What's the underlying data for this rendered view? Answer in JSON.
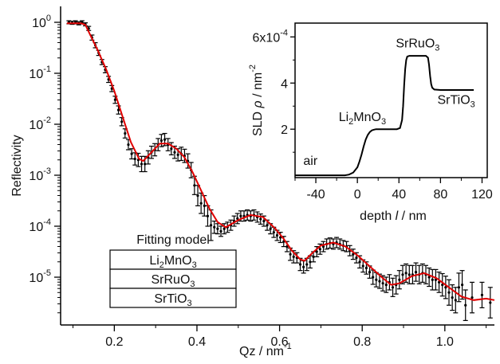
{
  "chart_data": [
    {
      "type": "scatter",
      "title": "",
      "xlabel": "Qz / nm",
      "xlabel_sup": "-1",
      "ylabel": "Reflectivity",
      "xlim": [
        0.07,
        1.12
      ],
      "ylim_exponent": [
        -6,
        0
      ],
      "y_scale": "log",
      "x_ticks": [
        "0.2",
        "0.4",
        "0.6",
        "0.8",
        "1.0"
      ],
      "x_tick_values": [
        0.2,
        0.4,
        0.6,
        0.8,
        1.0
      ],
      "y_ticks": [
        {
          "base": "10",
          "exp": "0",
          "value": 0
        },
        {
          "base": "10",
          "exp": "-1",
          "value": -1
        },
        {
          "base": "10",
          "exp": "-2",
          "value": -2
        },
        {
          "base": "10",
          "exp": "-3",
          "value": -3
        },
        {
          "base": "10",
          "exp": "-4",
          "value": -4
        },
        {
          "base": "10",
          "exp": "-5",
          "value": -5
        }
      ],
      "series": [
        {
          "type": "errorbar",
          "color": "#000000",
          "points": [
            [
              0.09,
              0.0,
              0.03
            ],
            [
              0.098,
              -0.01,
              0.03
            ],
            [
              0.106,
              0.0,
              0.03
            ],
            [
              0.114,
              -0.02,
              0.03
            ],
            [
              0.122,
              0.0,
              0.03
            ],
            [
              0.13,
              -0.04,
              0.03
            ],
            [
              0.138,
              -0.12,
              0.04
            ],
            [
              0.146,
              -0.3,
              0.05
            ],
            [
              0.154,
              -0.45,
              0.05
            ],
            [
              0.162,
              -0.6,
              0.05
            ],
            [
              0.17,
              -0.78,
              0.05
            ],
            [
              0.178,
              -0.93,
              0.06
            ],
            [
              0.186,
              -1.12,
              0.06
            ],
            [
              0.194,
              -1.3,
              0.06
            ],
            [
              0.202,
              -1.52,
              0.07
            ],
            [
              0.21,
              -1.72,
              0.08
            ],
            [
              0.218,
              -1.95,
              0.08
            ],
            [
              0.226,
              -2.18,
              0.09
            ],
            [
              0.234,
              -2.4,
              0.1
            ],
            [
              0.242,
              -2.58,
              0.1
            ],
            [
              0.25,
              -2.68,
              0.12
            ],
            [
              0.258,
              -2.7,
              0.13
            ],
            [
              0.266,
              -2.78,
              0.15
            ],
            [
              0.274,
              -2.78,
              0.15
            ],
            [
              0.282,
              -2.65,
              0.13
            ],
            [
              0.29,
              -2.55,
              0.12
            ],
            [
              0.298,
              -2.5,
              0.12
            ],
            [
              0.306,
              -2.4,
              0.12
            ],
            [
              0.314,
              -2.32,
              0.12
            ],
            [
              0.322,
              -2.3,
              0.12
            ],
            [
              0.33,
              -2.4,
              0.12
            ],
            [
              0.338,
              -2.48,
              0.12
            ],
            [
              0.346,
              -2.55,
              0.12
            ],
            [
              0.354,
              -2.6,
              0.12
            ],
            [
              0.362,
              -2.58,
              0.13
            ],
            [
              0.37,
              -2.62,
              0.13
            ],
            [
              0.378,
              -2.72,
              0.14
            ],
            [
              0.386,
              -2.9,
              0.15
            ],
            [
              0.394,
              -3.2,
              0.18
            ],
            [
              0.402,
              -3.4,
              0.2
            ],
            [
              0.41,
              -3.55,
              0.2
            ],
            [
              0.418,
              -3.6,
              0.2
            ],
            [
              0.426,
              -3.8,
              0.2
            ],
            [
              0.434,
              -3.98,
              0.3
            ],
            [
              0.442,
              -4.02,
              0.12
            ],
            [
              0.45,
              -4.05,
              0.1
            ],
            [
              0.458,
              -4.1,
              0.1
            ],
            [
              0.466,
              -4.05,
              0.1
            ],
            [
              0.474,
              -4.02,
              0.1
            ],
            [
              0.482,
              -3.98,
              0.1
            ],
            [
              0.49,
              -3.9,
              0.1
            ],
            [
              0.498,
              -3.85,
              0.1
            ],
            [
              0.506,
              -3.8,
              0.1
            ],
            [
              0.514,
              -3.8,
              0.1
            ],
            [
              0.522,
              -3.78,
              0.1
            ],
            [
              0.53,
              -3.8,
              0.1
            ],
            [
              0.538,
              -3.78,
              0.1
            ],
            [
              0.546,
              -3.82,
              0.1
            ],
            [
              0.554,
              -3.86,
              0.1
            ],
            [
              0.562,
              -3.9,
              0.1
            ],
            [
              0.57,
              -3.98,
              0.1
            ],
            [
              0.578,
              -4.05,
              0.1
            ],
            [
              0.586,
              -4.12,
              0.1
            ],
            [
              0.594,
              -4.18,
              0.1
            ],
            [
              0.602,
              -4.22,
              0.1
            ],
            [
              0.61,
              -4.3,
              0.1
            ],
            [
              0.618,
              -4.4,
              0.1
            ],
            [
              0.626,
              -4.55,
              0.12
            ],
            [
              0.634,
              -4.6,
              0.12
            ],
            [
              0.642,
              -4.62,
              0.1
            ],
            [
              0.65,
              -4.75,
              0.12
            ],
            [
              0.658,
              -4.8,
              0.12
            ],
            [
              0.666,
              -4.75,
              0.12
            ],
            [
              0.674,
              -4.7,
              0.12
            ],
            [
              0.682,
              -4.6,
              0.1
            ],
            [
              0.69,
              -4.5,
              0.1
            ],
            [
              0.698,
              -4.45,
              0.1
            ],
            [
              0.706,
              -4.4,
              0.1
            ],
            [
              0.714,
              -4.35,
              0.1
            ],
            [
              0.722,
              -4.33,
              0.1
            ],
            [
              0.73,
              -4.35,
              0.1
            ],
            [
              0.738,
              -4.32,
              0.1
            ],
            [
              0.746,
              -4.35,
              0.1
            ],
            [
              0.754,
              -4.38,
              0.1
            ],
            [
              0.762,
              -4.4,
              0.1
            ],
            [
              0.77,
              -4.48,
              0.1
            ],
            [
              0.778,
              -4.55,
              0.1
            ],
            [
              0.786,
              -4.62,
              0.1
            ],
            [
              0.794,
              -4.7,
              0.12
            ],
            [
              0.802,
              -4.78,
              0.12
            ],
            [
              0.81,
              -4.82,
              0.12
            ],
            [
              0.818,
              -4.9,
              0.12
            ],
            [
              0.826,
              -5.0,
              0.14
            ],
            [
              0.834,
              -5.05,
              0.14
            ],
            [
              0.842,
              -5.08,
              0.14
            ],
            [
              0.85,
              -5.12,
              0.15
            ],
            [
              0.858,
              -5.15,
              0.15
            ],
            [
              0.866,
              -5.1,
              0.15
            ],
            [
              0.874,
              -5.2,
              0.18
            ],
            [
              0.882,
              -5.15,
              0.18
            ],
            [
              0.89,
              -5.05,
              0.18
            ],
            [
              0.898,
              -4.95,
              0.18
            ],
            [
              0.906,
              -4.92,
              0.18
            ],
            [
              0.914,
              -4.95,
              0.18
            ],
            [
              0.922,
              -4.95,
              0.18
            ],
            [
              0.93,
              -4.9,
              0.18
            ],
            [
              0.938,
              -4.95,
              0.18
            ],
            [
              0.946,
              -4.92,
              0.18
            ],
            [
              0.954,
              -4.95,
              0.18
            ],
            [
              0.962,
              -5.0,
              0.18
            ],
            [
              0.97,
              -5.05,
              0.2
            ],
            [
              0.978,
              -5.05,
              0.2
            ],
            [
              0.986,
              -5.1,
              0.2
            ],
            [
              0.994,
              -5.15,
              0.22
            ],
            [
              1.002,
              -5.2,
              0.22
            ],
            [
              1.01,
              -5.3,
              0.25
            ],
            [
              1.018,
              -5.4,
              0.25
            ],
            [
              1.026,
              -5.45,
              0.25
            ],
            [
              1.034,
              -5.2,
              0.28
            ],
            [
              1.042,
              -5.15,
              0.28
            ],
            [
              1.05,
              -5.55,
              0.3
            ],
            [
              1.066,
              -5.4,
              0.3
            ],
            [
              1.09,
              -5.35,
              0.25
            ],
            [
              1.11,
              -5.5,
              0.3
            ]
          ]
        },
        {
          "type": "line",
          "color": "#e00000",
          "x": [
            0.085,
            0.1,
            0.12,
            0.13,
            0.14,
            0.16,
            0.18,
            0.2,
            0.22,
            0.24,
            0.26,
            0.27,
            0.29,
            0.31,
            0.33,
            0.35,
            0.37,
            0.39,
            0.41,
            0.43,
            0.45,
            0.47,
            0.5,
            0.53,
            0.56,
            0.59,
            0.61,
            0.63,
            0.65,
            0.66,
            0.68,
            0.7,
            0.73,
            0.76,
            0.79,
            0.82,
            0.85,
            0.87,
            0.89,
            0.92,
            0.95,
            0.98,
            1.01,
            1.04,
            1.07,
            1.1,
            1.12
          ],
          "y": [
            -0.02,
            -0.02,
            -0.02,
            -0.05,
            -0.22,
            -0.55,
            -0.92,
            -1.35,
            -1.85,
            -2.35,
            -2.68,
            -2.72,
            -2.55,
            -2.38,
            -2.38,
            -2.48,
            -2.65,
            -2.95,
            -3.3,
            -3.65,
            -3.92,
            -4.02,
            -3.88,
            -3.78,
            -3.82,
            -4.05,
            -4.25,
            -4.48,
            -4.65,
            -4.68,
            -4.52,
            -4.38,
            -4.32,
            -4.4,
            -4.58,
            -4.8,
            -5.02,
            -5.15,
            -5.12,
            -4.98,
            -4.92,
            -5.02,
            -5.2,
            -5.38,
            -5.45,
            -5.42,
            -5.45
          ]
        }
      ]
    },
    {
      "type": "line",
      "title": "",
      "xlabel": "depth",
      "xlabel_var": "l",
      "xlabel_unit": "nm",
      "ylabel": "SLD",
      "ylabel_var": "ρ",
      "ylabel_unit": "nm",
      "ylabel_unit_sup": "-2",
      "xlim": [
        -60,
        125
      ],
      "ylim": [
        -0.1,
        6.6
      ],
      "x_ticks": [
        "-40",
        "0",
        "40",
        "80",
        "120"
      ],
      "x_tick_values": [
        -40,
        0,
        40,
        80,
        120
      ],
      "y_ticks": [
        "2",
        "4",
        "6x10"
      ],
      "y_tick_values": [
        2,
        4,
        6
      ],
      "y_multiplier_exp": "-4",
      "series": [
        {
          "color": "#000000",
          "x": [
            -60,
            -12,
            -8,
            -4,
            0,
            2,
            4,
            6,
            8,
            10,
            12,
            14,
            16,
            18,
            22,
            30,
            38,
            41,
            43,
            44,
            45,
            46,
            47,
            48,
            50,
            58,
            66,
            68,
            69,
            70,
            71,
            72,
            74,
            80,
            90,
            100,
            112
          ],
          "y": [
            0.0,
            0.0,
            0.03,
            0.12,
            0.35,
            0.6,
            0.9,
            1.25,
            1.55,
            1.75,
            1.88,
            1.95,
            1.98,
            2.0,
            2.0,
            2.0,
            2.0,
            2.05,
            2.4,
            3.0,
            3.9,
            4.6,
            5.0,
            5.15,
            5.18,
            5.18,
            5.18,
            5.1,
            4.8,
            4.3,
            3.95,
            3.8,
            3.72,
            3.7,
            3.7,
            3.7,
            3.7
          ]
        }
      ],
      "annotations": [
        {
          "text": "air",
          "x": -52,
          "y": 0.45
        },
        {
          "text": "Li",
          "sub": "2",
          "text2": "MnO",
          "sub2": "3",
          "x": -18,
          "y": 2.35
        },
        {
          "text": "SrRuO",
          "sub": "3",
          "x": 37,
          "y": 5.55
        },
        {
          "text": "SrTiO",
          "sub": "3",
          "x": 77,
          "y": 3.1
        }
      ]
    }
  ],
  "legend": {
    "title": "Fitting model",
    "layers": [
      {
        "text": "Li",
        "sub": "2",
        "text2": "MnO",
        "sub2": "3"
      },
      {
        "text": "SrRuO",
        "sub": "3"
      },
      {
        "text": "SrTiO",
        "sub": "3"
      }
    ]
  }
}
